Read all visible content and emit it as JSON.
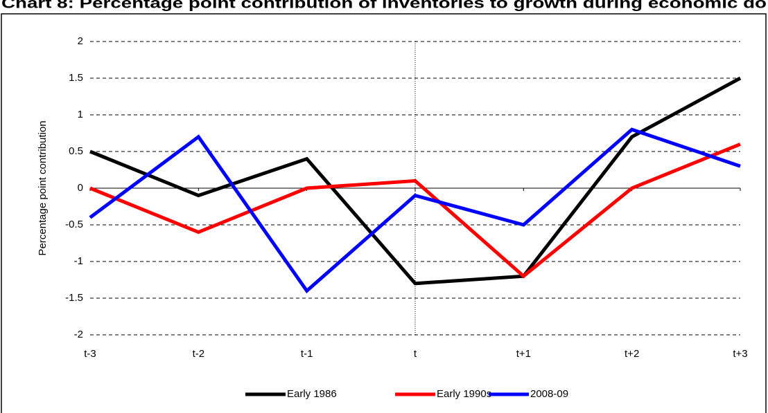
{
  "chart_data": {
    "type": "line",
    "title": "Chart 8: Percentage point contribution of inventories to growth during economic do",
    "y_label": "Percentage point contribution",
    "categories": [
      "t-3",
      "t-2",
      "t-1",
      "t",
      "t+1",
      "t+2",
      "t+3"
    ],
    "series": [
      {
        "name": "Early 1986",
        "color": "#000000",
        "values": [
          0.5,
          -0.1,
          0.4,
          -1.3,
          -1.2,
          0.7,
          1.5
        ]
      },
      {
        "name": "Early 1990s",
        "color": "#ff0000",
        "values": [
          0,
          -0.6,
          0,
          0.1,
          -1.2,
          0,
          0.6
        ]
      },
      {
        "name": "2008-09",
        "color": "#0000ff",
        "values": [
          -0.4,
          0.7,
          -1.4,
          -0.1,
          -0.5,
          0.8,
          0.3
        ]
      }
    ],
    "ylim": [
      -2,
      2
    ],
    "yticks": [
      -2,
      -1.5,
      -1,
      -0.5,
      0,
      0.5,
      1,
      1.5,
      2
    ],
    "grid": true,
    "legend": "bottom"
  }
}
